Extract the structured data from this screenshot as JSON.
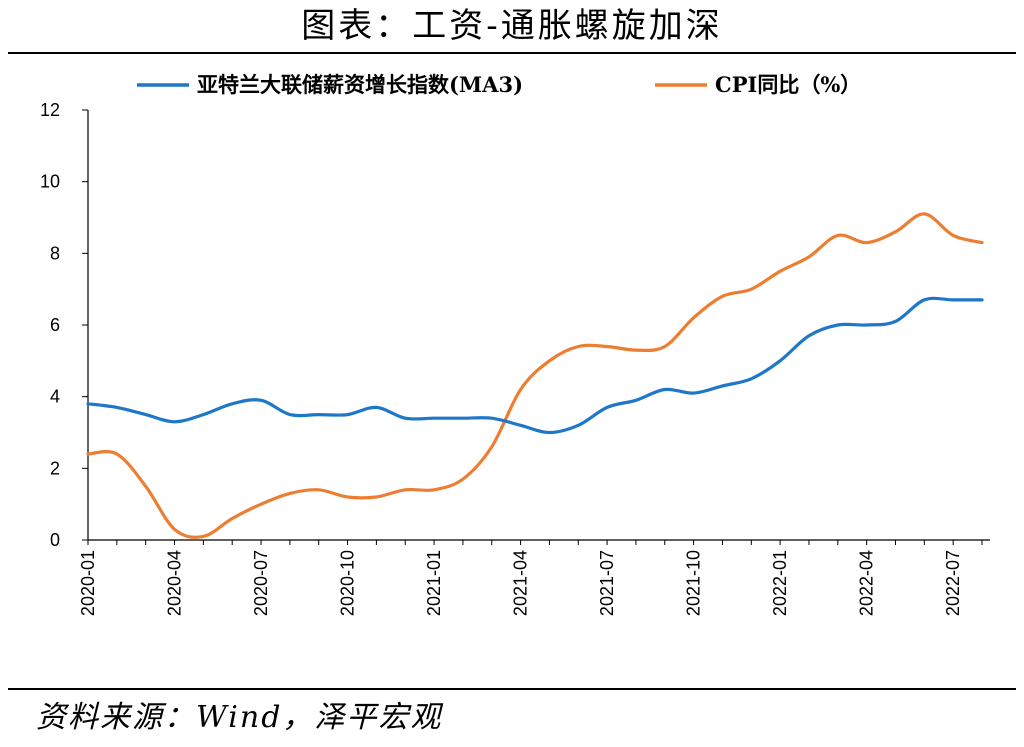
{
  "header": {
    "title": "图表：工资-通胀螺旋加深"
  },
  "footer": {
    "source": "资料来源：Wind，泽平宏观"
  },
  "chart_data": {
    "type": "line",
    "title": "图表：工资-通胀螺旋加深",
    "xlabel": "",
    "ylabel": "",
    "ylim": [
      0,
      12
    ],
    "yticks": [
      0,
      2,
      4,
      6,
      8,
      10,
      12
    ],
    "grid": false,
    "legend_position": "top",
    "x": [
      "2020-01",
      "2020-02",
      "2020-03",
      "2020-04",
      "2020-05",
      "2020-06",
      "2020-07",
      "2020-08",
      "2020-09",
      "2020-10",
      "2020-11",
      "2020-12",
      "2021-01",
      "2021-02",
      "2021-03",
      "2021-04",
      "2021-05",
      "2021-06",
      "2021-07",
      "2021-08",
      "2021-09",
      "2021-10",
      "2021-11",
      "2021-12",
      "2022-01",
      "2022-02",
      "2022-03",
      "2022-04",
      "2022-05",
      "2022-06",
      "2022-07",
      "2022-08"
    ],
    "xtick_labels": [
      "2020-01",
      "2020-04",
      "2020-07",
      "2020-10",
      "2021-01",
      "2021-04",
      "2021-07",
      "2021-10",
      "2022-01",
      "2022-04",
      "2022-07"
    ],
    "series": [
      {
        "name": "亚特兰大联储薪资增长指数(MA3)",
        "color": "#1f77c9",
        "values": [
          3.8,
          3.7,
          3.5,
          3.3,
          3.5,
          3.8,
          3.9,
          3.5,
          3.5,
          3.5,
          3.7,
          3.4,
          3.4,
          3.4,
          3.4,
          3.2,
          3.0,
          3.2,
          3.7,
          3.9,
          4.2,
          4.1,
          4.3,
          4.5,
          5.0,
          5.7,
          6.0,
          6.0,
          6.1,
          6.7,
          6.7,
          6.7
        ]
      },
      {
        "name": "CPI同比（%）",
        "color": "#ed7d31",
        "values": [
          2.4,
          2.4,
          1.5,
          0.3,
          0.1,
          0.6,
          1.0,
          1.3,
          1.4,
          1.2,
          1.2,
          1.4,
          1.4,
          1.7,
          2.6,
          4.2,
          5.0,
          5.4,
          5.4,
          5.3,
          5.4,
          6.2,
          6.8,
          7.0,
          7.5,
          7.9,
          8.5,
          8.3,
          8.6,
          9.1,
          8.5,
          8.3
        ]
      }
    ]
  }
}
